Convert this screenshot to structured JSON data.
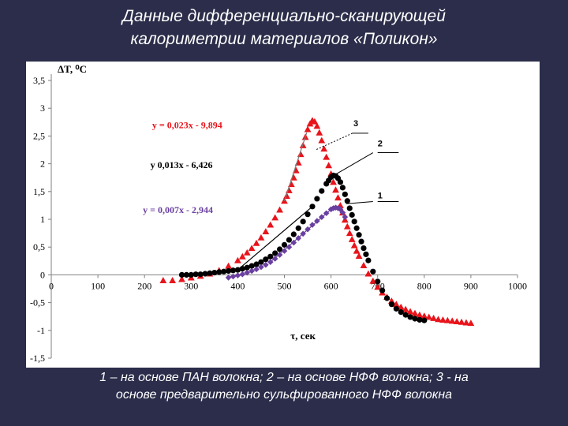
{
  "slide": {
    "title_line1": "Данные дифференциально-сканирующей",
    "title_line2": "калориметрии материалов «Поликон»",
    "caption_line1": "1 – на основе ПАН волокна; 2 – на основе НФФ волокна; 3 - на",
    "caption_line2": "основе предварительно сульфированного НФФ волокна"
  },
  "chart_data": {
    "type": "scatter",
    "title": "",
    "xlabel": "τ, сек",
    "ylabel": "ΔT, ⁰C",
    "xlim": [
      0,
      1000
    ],
    "ylim": [
      -1.5,
      3.5
    ],
    "x_ticks": [
      "0",
      "100",
      "200",
      "300",
      "400",
      "500",
      "600",
      "700",
      "800",
      "900",
      "1000"
    ],
    "y_ticks": [
      "-1,5",
      "-1",
      "-0,5",
      "0",
      "0,5",
      "1",
      "1,5",
      "2",
      "2,5",
      "3",
      "3,5"
    ],
    "grid": false,
    "series": [
      {
        "name": "1",
        "color": "#6a3fa0",
        "marker": "diamond",
        "trendline": "y = 0,007x - 2,944",
        "x": [
          380,
          390,
          400,
          410,
          420,
          430,
          440,
          450,
          460,
          470,
          480,
          490,
          500,
          510,
          520,
          530,
          540,
          550,
          560,
          570,
          580,
          590,
          600,
          605,
          610,
          615,
          620,
          625,
          630
        ],
        "y": [
          -0.05,
          -0.03,
          -0.01,
          0.01,
          0.04,
          0.07,
          0.1,
          0.14,
          0.18,
          0.23,
          0.29,
          0.36,
          0.43,
          0.5,
          0.58,
          0.66,
          0.74,
          0.82,
          0.9,
          0.97,
          1.04,
          1.11,
          1.18,
          1.2,
          1.21,
          1.2,
          1.18,
          1.12,
          1.04
        ]
      },
      {
        "name": "2",
        "color": "#000000",
        "marker": "circle",
        "trendline": "у 0,013х - 6,426",
        "x": [
          280,
          290,
          300,
          310,
          320,
          330,
          340,
          350,
          360,
          370,
          380,
          390,
          400,
          410,
          420,
          430,
          440,
          450,
          460,
          470,
          480,
          490,
          500,
          510,
          520,
          530,
          540,
          550,
          560,
          570,
          580,
          590,
          595,
          600,
          605,
          610,
          615,
          620,
          625,
          630,
          635,
          640,
          645,
          650,
          655,
          660,
          665,
          670,
          675,
          680,
          690,
          700,
          710,
          720,
          730,
          740,
          750,
          760,
          770,
          780,
          790,
          800
        ],
        "y": [
          0.0,
          0.0,
          0.0,
          0.01,
          0.01,
          0.02,
          0.03,
          0.04,
          0.05,
          0.06,
          0.07,
          0.08,
          0.09,
          0.11,
          0.13,
          0.16,
          0.19,
          0.23,
          0.28,
          0.33,
          0.39,
          0.46,
          0.54,
          0.63,
          0.73,
          0.84,
          0.96,
          1.09,
          1.23,
          1.37,
          1.51,
          1.64,
          1.7,
          1.76,
          1.79,
          1.78,
          1.74,
          1.67,
          1.57,
          1.45,
          1.33,
          1.2,
          1.08,
          0.96,
          0.84,
          0.72,
          0.6,
          0.48,
          0.37,
          0.26,
          0.06,
          -0.12,
          -0.28,
          -0.42,
          -0.53,
          -0.61,
          -0.67,
          -0.72,
          -0.76,
          -0.79,
          -0.81,
          -0.82
        ]
      },
      {
        "name": "3",
        "color": "#e8141b",
        "marker": "triangle",
        "trendline": "y = 0,023x - 9,894",
        "x": [
          240,
          260,
          280,
          300,
          320,
          340,
          360,
          380,
          400,
          410,
          420,
          430,
          440,
          450,
          460,
          470,
          480,
          490,
          500,
          505,
          510,
          515,
          520,
          525,
          530,
          535,
          540,
          545,
          550,
          555,
          560,
          565,
          570,
          575,
          580,
          585,
          590,
          595,
          600,
          605,
          610,
          615,
          620,
          625,
          630,
          635,
          640,
          645,
          650,
          655,
          660,
          670,
          680,
          690,
          700,
          710,
          720,
          730,
          740,
          750,
          760,
          770,
          780,
          790,
          800,
          810,
          820,
          830,
          840,
          850,
          860,
          870,
          880,
          890,
          900
        ],
        "y": [
          -0.1,
          -0.1,
          -0.08,
          -0.05,
          -0.02,
          0.02,
          0.08,
          0.16,
          0.26,
          0.33,
          0.4,
          0.48,
          0.57,
          0.67,
          0.78,
          0.9,
          1.03,
          1.17,
          1.33,
          1.42,
          1.52,
          1.63,
          1.75,
          1.88,
          2.02,
          2.17,
          2.33,
          2.48,
          2.62,
          2.72,
          2.78,
          2.76,
          2.68,
          2.56,
          2.42,
          2.27,
          2.12,
          1.97,
          1.82,
          1.67,
          1.53,
          1.39,
          1.25,
          1.12,
          0.99,
          0.87,
          0.75,
          0.64,
          0.53,
          0.43,
          0.34,
          0.17,
          0.02,
          -0.11,
          -0.22,
          -0.32,
          -0.4,
          -0.47,
          -0.53,
          -0.58,
          -0.62,
          -0.66,
          -0.69,
          -0.72,
          -0.74,
          -0.76,
          -0.78,
          -0.8,
          -0.81,
          -0.82,
          -0.83,
          -0.84,
          -0.85,
          -0.86,
          -0.87
        ]
      }
    ]
  }
}
